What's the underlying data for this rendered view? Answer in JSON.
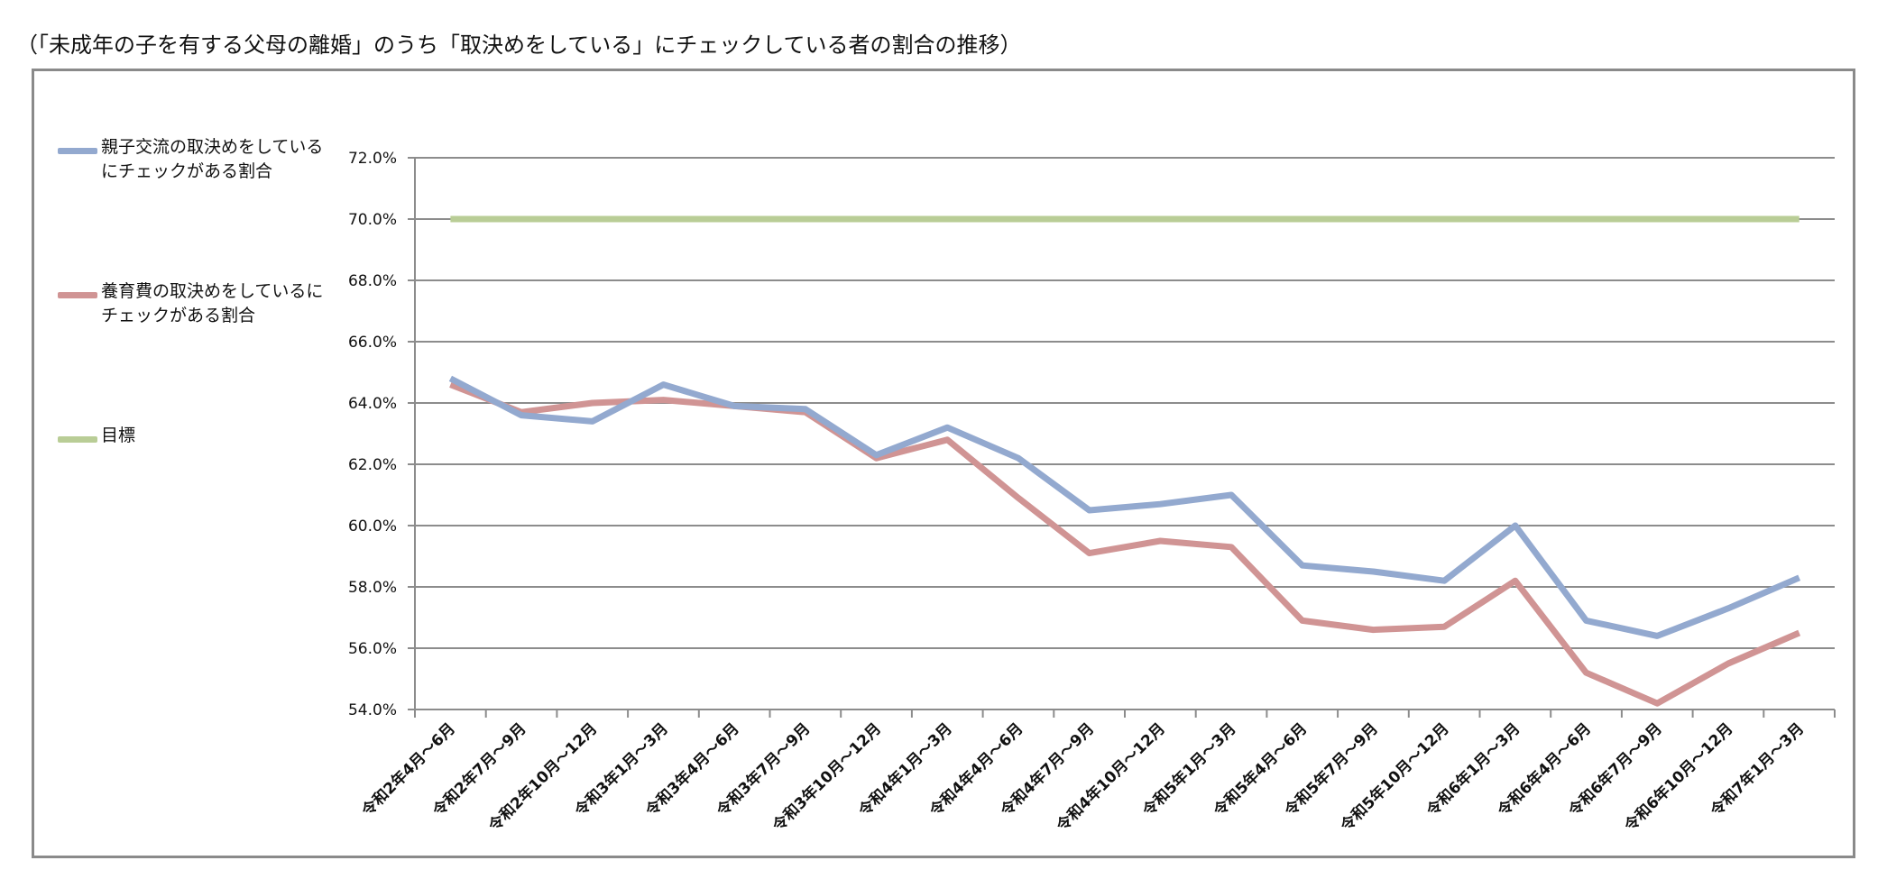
{
  "page": {
    "title": "（「未成年の子を有する父母の離婚」のうち「取決めをしている」にチェックしている者の割合の推移）"
  },
  "legend": [
    {
      "label_line1": "親子交流の取決めをしている",
      "label_line2": "にチェックがある割合",
      "color": "#93a9cf"
    },
    {
      "label_line1": "養育費の取決めをしているに",
      "label_line2": "チェックがある割合",
      "color": "#d09494"
    },
    {
      "label_line1": "目標",
      "label_line2": "",
      "color": "#b9cd96"
    }
  ],
  "chart_data": {
    "type": "line",
    "title": "",
    "xlabel": "",
    "ylabel": "",
    "ylim": [
      54.0,
      72.0
    ],
    "y_ticks": [
      54.0,
      56.0,
      58.0,
      60.0,
      62.0,
      64.0,
      66.0,
      68.0,
      70.0,
      72.0
    ],
    "y_tick_labels": [
      "54.0%",
      "56.0%",
      "58.0%",
      "60.0%",
      "62.0%",
      "64.0%",
      "66.0%",
      "68.0%",
      "70.0%",
      "72.0%"
    ],
    "grid": true,
    "legend_position": "left",
    "categories": [
      "令和2年4月～6月",
      "令和2年7月～9月",
      "令和2年10月～12月",
      "令和3年1月～3月",
      "令和3年4月～6月",
      "令和3年7月～9月",
      "令和3年10月～12月",
      "令和4年1月～3月",
      "令和4年4月～6月",
      "令和4年7月～9月",
      "令和4年10月～12月",
      "令和5年1月～3月",
      "令和5年4月～6月",
      "令和5年7月～9月",
      "令和5年10月～12月",
      "令和6年1月～3月",
      "令和6年4月～6月",
      "令和6年7月～9月",
      "令和6年10月～12月",
      "令和7年1月～3月"
    ],
    "series": [
      {
        "name": "親子交流の取決めをしているにチェックがある割合",
        "color": "#93a9cf",
        "values": [
          64.8,
          63.6,
          63.4,
          64.6,
          63.9,
          63.8,
          62.3,
          63.2,
          62.2,
          60.5,
          60.7,
          61.0,
          58.7,
          58.5,
          58.2,
          60.0,
          56.9,
          56.4,
          57.3,
          58.3
        ]
      },
      {
        "name": "養育費の取決めをしているにチェックがある割合",
        "color": "#d09494",
        "values": [
          64.6,
          63.7,
          64.0,
          64.1,
          63.9,
          63.7,
          62.2,
          62.8,
          60.9,
          59.1,
          59.5,
          59.3,
          56.9,
          56.6,
          56.7,
          58.2,
          55.2,
          54.2,
          55.5,
          56.5
        ]
      },
      {
        "name": "目標",
        "color": "#b9cd96",
        "values": [
          70.0,
          70.0,
          70.0,
          70.0,
          70.0,
          70.0,
          70.0,
          70.0,
          70.0,
          70.0,
          70.0,
          70.0,
          70.0,
          70.0,
          70.0,
          70.0,
          70.0,
          70.0,
          70.0,
          70.0
        ]
      }
    ]
  }
}
